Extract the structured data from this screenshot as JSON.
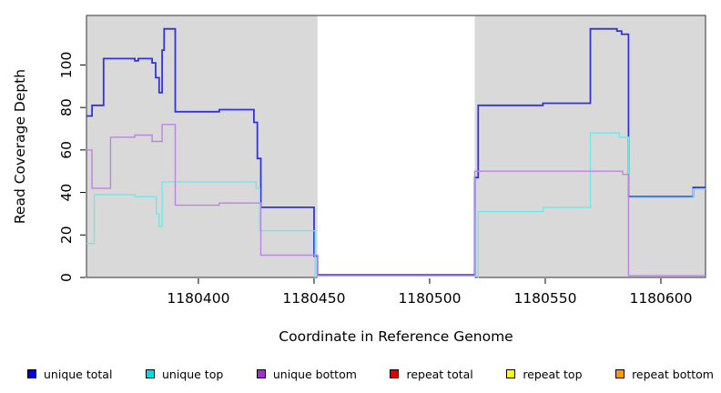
{
  "chart_data": {
    "type": "line",
    "subtype": "step",
    "title": "",
    "xlabel": "Coordinate in Reference Genome",
    "ylabel": "Read Coverage Depth",
    "xlim": [
      1180351.6,
      1180619.3
    ],
    "ylim": [
      0,
      123.3
    ],
    "x_ticks": [
      1180400,
      1180450,
      1180500,
      1180550,
      1180600
    ],
    "y_ticks": [
      0,
      20,
      40,
      60,
      80,
      100
    ],
    "grid": false,
    "legend_position": "bottom",
    "panel_bg": "#d9d9d9",
    "frame_color": "#333333",
    "no_data_region": {
      "from": 1180451.5,
      "to": 1180519.5,
      "color": "#ffffff"
    },
    "series": [
      {
        "id": "unique-total",
        "name": "unique total",
        "color": "#3333dd",
        "width": 1.8,
        "points": [
          [
            1180351.6,
            76
          ],
          [
            1180354,
            81
          ],
          [
            1180359,
            103
          ],
          [
            1180372.5,
            102
          ],
          [
            1180374,
            103
          ],
          [
            1180380,
            101
          ],
          [
            1180381.5,
            94
          ],
          [
            1180383,
            87
          ],
          [
            1180384.3,
            107
          ],
          [
            1180385.2,
            117
          ],
          [
            1180390,
            78
          ],
          [
            1180409,
            79
          ],
          [
            1180424,
            73
          ],
          [
            1180425.5,
            56
          ],
          [
            1180427,
            33
          ],
          [
            1180450,
            10
          ],
          [
            1180451.5,
            1.2
          ],
          [
            1180519.5,
            47
          ],
          [
            1180521,
            81
          ],
          [
            1180549,
            82
          ],
          [
            1180569.5,
            117
          ],
          [
            1180581,
            116
          ],
          [
            1180583,
            114.5
          ],
          [
            1180586,
            38
          ],
          [
            1180614,
            42.4
          ],
          [
            1180619.3,
            42.4
          ]
        ]
      },
      {
        "id": "unique-top",
        "name": "unique top",
        "color": "#70e8e8",
        "width": 1.4,
        "points": [
          [
            1180351.6,
            16
          ],
          [
            1180355,
            39
          ],
          [
            1180372.5,
            38
          ],
          [
            1180381.8,
            30
          ],
          [
            1180383,
            24
          ],
          [
            1180384.3,
            45
          ],
          [
            1180425,
            42
          ],
          [
            1180426.5,
            22
          ],
          [
            1180450.5,
            0
          ],
          [
            1180451.8,
            null
          ],
          [
            1180520.8,
            0
          ],
          [
            1180521,
            31
          ],
          [
            1180549,
            33
          ],
          [
            1180569.5,
            68
          ],
          [
            1180582,
            66
          ],
          [
            1180586,
            37.6
          ],
          [
            1180614,
            41.6
          ],
          [
            1180619.3,
            41.6
          ]
        ]
      },
      {
        "id": "unique-bottom",
        "name": "unique bottom",
        "color": "#bb86e0",
        "width": 1.4,
        "points": [
          [
            1180351.6,
            60
          ],
          [
            1180354,
            42
          ],
          [
            1180362,
            66
          ],
          [
            1180372.5,
            67
          ],
          [
            1180380,
            64
          ],
          [
            1180384.3,
            72
          ],
          [
            1180390,
            34
          ],
          [
            1180409,
            35
          ],
          [
            1180427,
            10.5
          ],
          [
            1180451.5,
            0.8
          ],
          [
            1180519.5,
            50
          ],
          [
            1180583.5,
            48.5
          ],
          [
            1180586,
            0.8
          ],
          [
            1180619.3,
            0.8
          ]
        ]
      },
      {
        "id": "repeat-total",
        "name": "repeat total",
        "color": "#dd2222",
        "width": 1.4,
        "points": [
          [
            1180351.6,
            0
          ],
          [
            1180451.5,
            null
          ],
          [
            1180519.5,
            0
          ],
          [
            1180586,
            null
          ]
        ]
      },
      {
        "id": "repeat-top",
        "name": "repeat top",
        "color": "#eeee22",
        "width": 1.4,
        "points": [
          [
            1180351.6,
            0
          ],
          [
            1180451.5,
            null
          ],
          [
            1180519.5,
            0
          ],
          [
            1180586,
            null
          ]
        ]
      },
      {
        "id": "repeat-bottom",
        "name": "repeat bottom",
        "color": "#ff9d28",
        "width": 1.6,
        "points": [
          [
            1180351.6,
            0
          ],
          [
            1180451.5,
            null
          ],
          [
            1180519.5,
            0
          ],
          [
            1180586,
            null
          ]
        ]
      }
    ]
  },
  "legend": {
    "items": [
      {
        "label": "unique total",
        "fill": "#0000dd"
      },
      {
        "label": "unique top",
        "fill": "#00dddd"
      },
      {
        "label": "unique bottom",
        "fill": "#9933cc"
      },
      {
        "label": "repeat total",
        "fill": "#dd0000"
      },
      {
        "label": "repeat top",
        "fill": "#ffff00"
      },
      {
        "label": "repeat bottom",
        "fill": "#ff9900"
      }
    ]
  }
}
